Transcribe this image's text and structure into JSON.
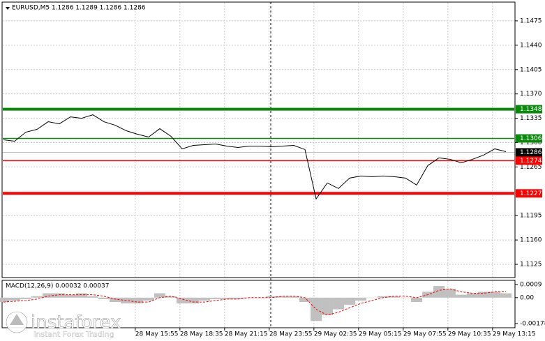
{
  "chart_data": [
    {
      "type": "line",
      "title": "EURUSD,M5  1.1286 1.1289 1.1286 1.1286",
      "color": "#000000",
      "values": [
        1.1304,
        1.1302,
        1.1315,
        1.1319,
        1.133,
        1.1327,
        1.1337,
        1.1335,
        1.134,
        1.133,
        1.1325,
        1.1317,
        1.1312,
        1.1308,
        1.132,
        1.1309,
        1.1291,
        1.1296,
        1.1297,
        1.1298,
        1.1295,
        1.1293,
        1.1295,
        1.1295,
        1.1294,
        1.1295,
        1.1296,
        1.129,
        1.1219,
        1.1242,
        1.1234,
        1.1249,
        1.1252,
        1.1251,
        1.1252,
        1.1251,
        1.1249,
        1.1239,
        1.1267,
        1.1278,
        1.1276,
        1.1271,
        1.1276,
        1.1282,
        1.1291,
        1.1287
      ],
      "xlim": [
        -0.125,
        45.81
      ],
      "xticks": [
        {
          "value": 11.8,
          "label": "28 May 15:55"
        },
        {
          "value": 15.8,
          "label": "28 May 18:35"
        },
        {
          "value": 19.8,
          "label": "28 May 21:15"
        },
        {
          "value": 23.8,
          "label": "28 May 23:55"
        },
        {
          "value": 27.8,
          "label": "29 May 02:35"
        },
        {
          "value": 31.8,
          "label": "29 May 05:15"
        },
        {
          "value": 35.8,
          "label": "29 May 07:55"
        },
        {
          "value": 39.8,
          "label": "29 May 10:35"
        },
        {
          "value": 43.8,
          "label": "29 May 13:15"
        }
      ],
      "ylim": [
        1.1106,
        1.1502
      ],
      "yticks": [
        1.1475,
        {
          "value": 1.144,
          "label": "1.1440"
        },
        1.1405,
        {
          "value": 1.137,
          "label": "1.1370"
        },
        1.1335,
        {
          "value": 1.13,
          "label": "1.1300"
        },
        1.1265,
        1.1195,
        {
          "value": 1.116,
          "label": "1.1160"
        },
        1.1125
      ],
      "grid": true,
      "levels": [
        {
          "value": 1.1348,
          "color": "#0a8a0a",
          "width": 4
        },
        {
          "value": 1.1306,
          "color": "#0a8a0a",
          "width": 1.5
        },
        {
          "value": 1.1274,
          "color": "#ff0000",
          "width": 1.5
        },
        {
          "value": 1.1227,
          "color": "#ff0000",
          "width": 4
        }
      ],
      "current_price": 1.1286
    },
    {
      "type": "macd",
      "title": "MACD(12,26,9) 0.00032 0.00037",
      "histogram": {
        "color": "#c0c0c0",
        "values": [
          -0.0003,
          -0.0002,
          -0.0001,
          0.0001,
          0.0003,
          0.0003,
          0.0002,
          0.0003,
          0.0001,
          -0.0001,
          -0.0003,
          -0.0004,
          -0.0004,
          -0.0002,
          0.0003,
          0.0001,
          -0.0004,
          -0.0004,
          -0.0002,
          -0.0001,
          -0.0001,
          -0.0001,
          0,
          0,
          0.0001,
          0.0001,
          0.0001,
          -0.0003,
          -0.0016,
          -0.0012,
          -0.0008,
          -0.0005,
          -0.0002,
          0,
          0.0001,
          0.0001,
          0,
          -0.0003,
          0.0004,
          0.0008,
          0.0006,
          0.0002,
          0.0003,
          0.0004,
          0.0004,
          0.0003
        ]
      },
      "signal": {
        "color": "#ff0000",
        "values": [
          -0.0003,
          -0.00025,
          -0.0002,
          -0.0001,
          0.0001,
          0.0002,
          0.0002,
          0.0002,
          0.0002,
          0.0001,
          -0.0001,
          -0.0002,
          -0.0003,
          -0.0003,
          0,
          0.0001,
          -0.0001,
          -0.0003,
          -0.0003,
          -0.0002,
          -0.0001,
          -0.0001,
          0,
          0,
          0,
          0.0001,
          0.0001,
          0,
          -0.0008,
          -0.0012,
          -0.001,
          -0.0007,
          -0.0004,
          -0.0002,
          0,
          0.0001,
          0.0001,
          0,
          0.0002,
          0.0005,
          0.0006,
          0.0004,
          0.0003,
          0.0003,
          0.0004,
          0.0004
        ]
      },
      "ylim": [
        -0.00178,
        0.0009
      ],
      "yticks": [
        0.0009,
        {
          "value": 0,
          "label": "0.00"
        },
        -0.00178
      ]
    }
  ],
  "watermark": {
    "brand": "instaforex",
    "tagline": "Instant Forex Trading"
  }
}
